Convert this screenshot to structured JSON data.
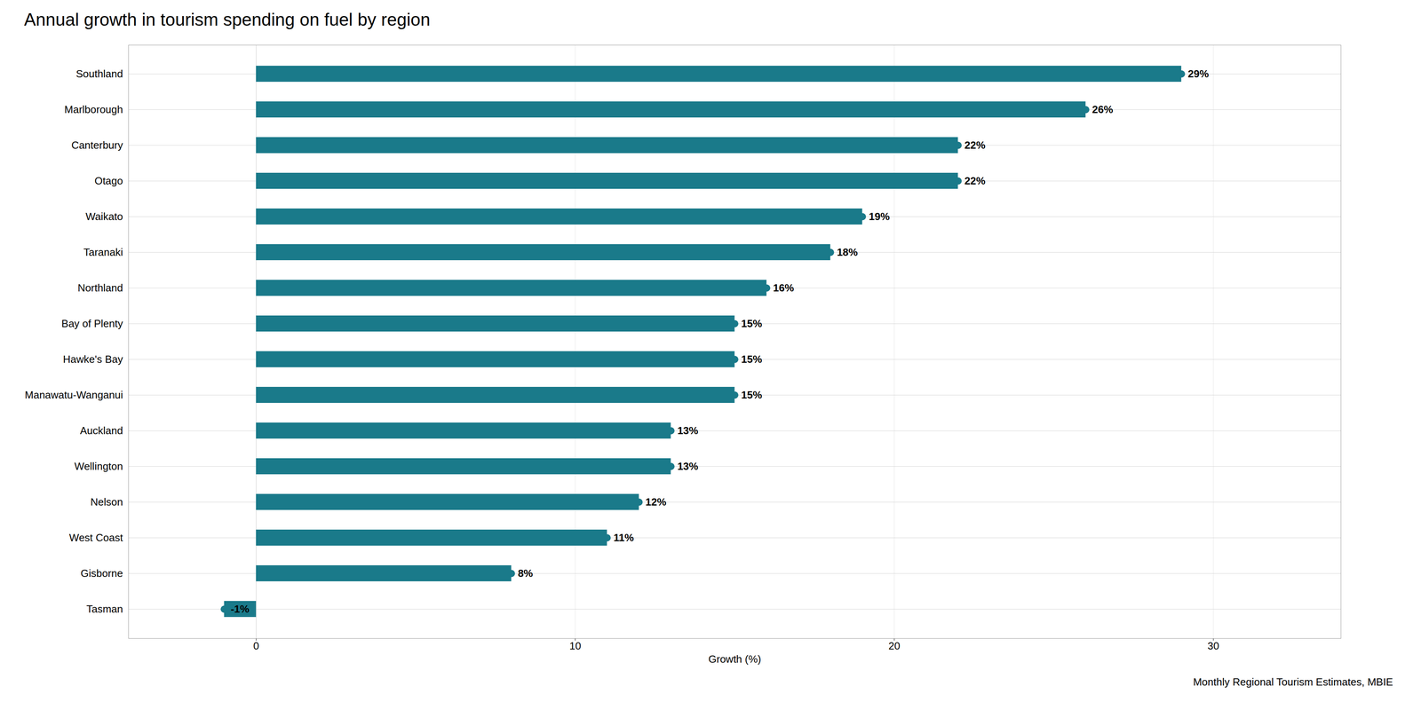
{
  "chart_data": {
    "type": "bar",
    "orientation": "horizontal",
    "title": "Annual growth in tourism spending on fuel by region",
    "xlabel": "Growth (%)",
    "footnote": "Monthly Regional Tourism Estimates, MBIE",
    "categories": [
      "Southland",
      "Marlborough",
      "Canterbury",
      "Otago",
      "Waikato",
      "Taranaki",
      "Northland",
      "Bay of Plenty",
      "Hawke's Bay",
      "Manawatu-Wanganui",
      "Auckland",
      "Wellington",
      "Nelson",
      "West Coast",
      "Gisborne",
      "Tasman"
    ],
    "values": [
      29,
      26,
      22,
      22,
      19,
      18,
      16,
      15,
      15,
      15,
      13,
      13,
      12,
      11,
      8,
      -1
    ],
    "value_labels": [
      "29%",
      "26%",
      "22%",
      "22%",
      "19%",
      "18%",
      "16%",
      "15%",
      "15%",
      "15%",
      "13%",
      "13%",
      "12%",
      "11%",
      "8%",
      "-1%"
    ],
    "color": "#1a7a8a",
    "xlim": [
      -4,
      34
    ],
    "xticks": [
      0,
      10,
      20,
      30
    ],
    "grid": true,
    "data_labels": true
  }
}
